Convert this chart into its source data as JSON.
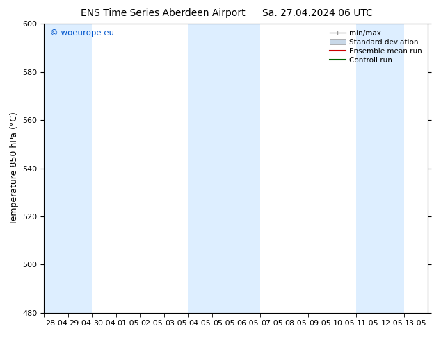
{
  "title_left": "ENS Time Series Aberdeen Airport",
  "title_right": "Sa. 27.04.2024 06 UTC",
  "ylabel": "Temperature 850 hPa (°C)",
  "ylim": [
    480,
    600
  ],
  "yticks": [
    480,
    500,
    520,
    540,
    560,
    580,
    600
  ],
  "xtick_labels": [
    "28.04",
    "29.04",
    "30.04",
    "01.05",
    "02.05",
    "03.05",
    "04.05",
    "05.05",
    "06.05",
    "07.05",
    "08.05",
    "09.05",
    "10.05",
    "11.05",
    "12.05",
    "13.05"
  ],
  "shaded_color": "#ddeeff",
  "watermark": "© woeurope.eu",
  "watermark_color": "#0055cc",
  "legend_labels": [
    "min/max",
    "Standard deviation",
    "Ensemble mean run",
    "Controll run"
  ],
  "legend_colors": [
    "#999999",
    "#c8d8e8",
    "#cc0000",
    "#006600"
  ],
  "bg_color": "#ffffff",
  "title_fontsize": 10,
  "tick_fontsize": 8,
  "ylabel_fontsize": 9,
  "watermark_fontsize": 8.5,
  "legend_fontsize": 7.5
}
